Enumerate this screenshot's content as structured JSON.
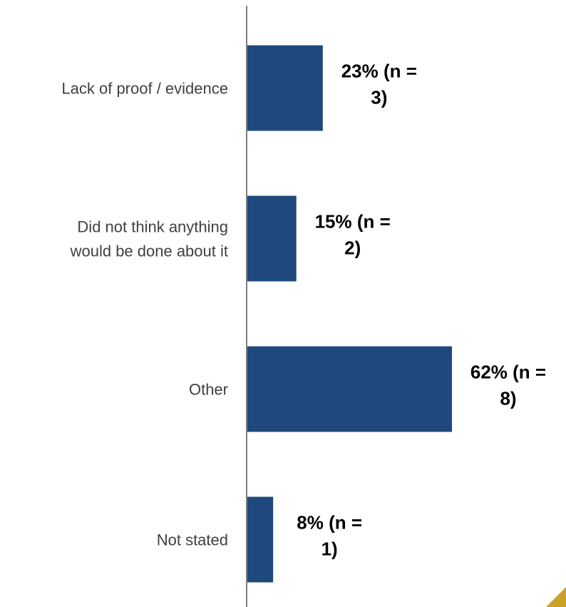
{
  "chart_data": {
    "type": "bar",
    "orientation": "horizontal",
    "categories": [
      [
        "Lack of proof / evidence"
      ],
      [
        "Did not think anything",
        "would be done about it"
      ],
      [
        "Other"
      ],
      [
        "Not stated"
      ]
    ],
    "values": [
      23,
      15,
      62,
      8
    ],
    "data_labels": [
      [
        "23% (n =",
        "3)"
      ],
      [
        "15% (n =",
        "2)"
      ],
      [
        "62% (n =",
        "8)"
      ],
      [
        "8% (n =",
        "1)"
      ]
    ],
    "title": "",
    "xlabel": "",
    "ylabel": "",
    "xlim": [
      0,
      100
    ],
    "grid": false,
    "legend": "none"
  },
  "colors": {
    "bar": "#1F497D",
    "axis": "#7F7F7F",
    "accent_corner": "#C9A227"
  }
}
